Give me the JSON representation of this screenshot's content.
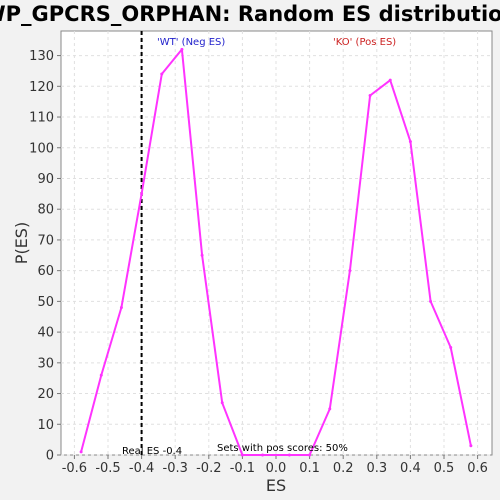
{
  "chart_data": {
    "type": "line",
    "title": "WP_GPCRS_ORPHAN: Random ES distribution",
    "xlabel": "ES",
    "ylabel": "P(ES)",
    "xlim": [
      -0.64,
      0.64
    ],
    "ylim": [
      0,
      138
    ],
    "x_ticks": [
      -0.6,
      -0.5,
      -0.4,
      -0.3,
      -0.2,
      -0.1,
      0.0,
      0.1,
      0.2,
      0.3,
      0.4,
      0.5,
      0.6
    ],
    "x_tick_labels": [
      "-0.6",
      "-0.5",
      "-0.4",
      "-0.3",
      "-0.2",
      "-0.1",
      "0.0",
      "0.1",
      "0.2",
      "0.3",
      "0.4",
      "0.5",
      "0.6"
    ],
    "y_ticks": [
      0,
      10,
      20,
      30,
      40,
      50,
      60,
      70,
      80,
      90,
      100,
      110,
      120,
      130
    ],
    "y_tick_labels": [
      "0",
      "10",
      "20",
      "30",
      "40",
      "50",
      "60",
      "70",
      "80",
      "90",
      "100",
      "110",
      "120",
      "130"
    ],
    "grid": true,
    "series": [
      {
        "color": "#ff33ff",
        "x": [
          -0.58,
          -0.52,
          -0.46,
          -0.4,
          -0.34,
          -0.28,
          -0.22,
          -0.16,
          -0.1,
          -0.04,
          0.04,
          0.1,
          0.16,
          0.22,
          0.28,
          0.34,
          0.4,
          0.46,
          0.52,
          0.58
        ],
        "y": [
          1,
          26,
          48,
          85,
          124,
          132,
          65,
          17,
          0,
          0,
          0,
          0,
          15,
          60,
          117,
          122,
          102,
          50,
          35,
          3
        ]
      }
    ],
    "real_es": {
      "x": -0.4,
      "label": "Real ES -0.4",
      "color": "#000000"
    },
    "annotations": {
      "wt_label": "'WT' (Neg ES)",
      "wt_color": "#2222cc",
      "ko_label": "'KO' (Pos ES)",
      "ko_color": "#cc2222",
      "pos_scores": "Sets with pos scores: 50%"
    },
    "colors": {
      "background": "#f2f2f2",
      "plot_background": "#ffffff",
      "grid": "#e0e0e0",
      "axis": "#777777"
    }
  }
}
